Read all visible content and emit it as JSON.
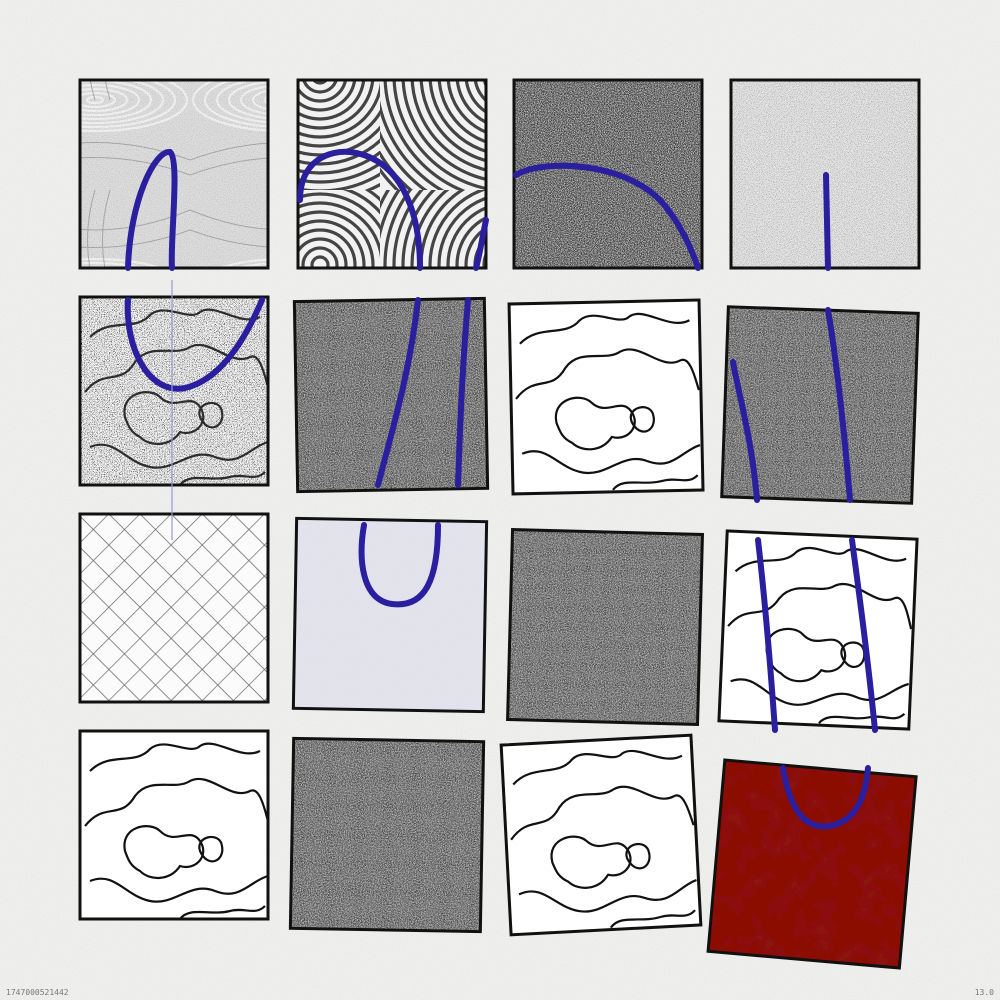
{
  "footer": {
    "left_code": "1747000521442",
    "right_version": "13.0"
  },
  "colors": {
    "background": "#f4f4f2",
    "ink": "#111111",
    "curve": "#2a1f9e",
    "accent_red": "#8c1409",
    "pale_lavender": "#e6e6f0"
  },
  "grid": {
    "rows": 4,
    "cols": 4,
    "tiles": [
      {
        "row": 1,
        "col": 1,
        "pattern": "moire-waves"
      },
      {
        "row": 1,
        "col": 2,
        "pattern": "concentric-rings"
      },
      {
        "row": 1,
        "col": 3,
        "pattern": "dark-noise"
      },
      {
        "row": 1,
        "col": 4,
        "pattern": "light-crosshatch-noise"
      },
      {
        "row": 2,
        "col": 1,
        "pattern": "stippled-contours"
      },
      {
        "row": 2,
        "col": 2,
        "pattern": "dark-noise"
      },
      {
        "row": 2,
        "col": 3,
        "pattern": "contour-lines"
      },
      {
        "row": 2,
        "col": 4,
        "pattern": "dark-noise"
      },
      {
        "row": 3,
        "col": 1,
        "pattern": "diagonal-crosshatch"
      },
      {
        "row": 3,
        "col": 2,
        "pattern": "pale-lavender"
      },
      {
        "row": 3,
        "col": 3,
        "pattern": "dark-noise"
      },
      {
        "row": 3,
        "col": 4,
        "pattern": "contour-lines"
      },
      {
        "row": 4,
        "col": 1,
        "pattern": "contour-lines"
      },
      {
        "row": 4,
        "col": 2,
        "pattern": "dark-noise"
      },
      {
        "row": 4,
        "col": 3,
        "pattern": "contour-lines"
      },
      {
        "row": 4,
        "col": 4,
        "pattern": "red-fill"
      }
    ]
  }
}
